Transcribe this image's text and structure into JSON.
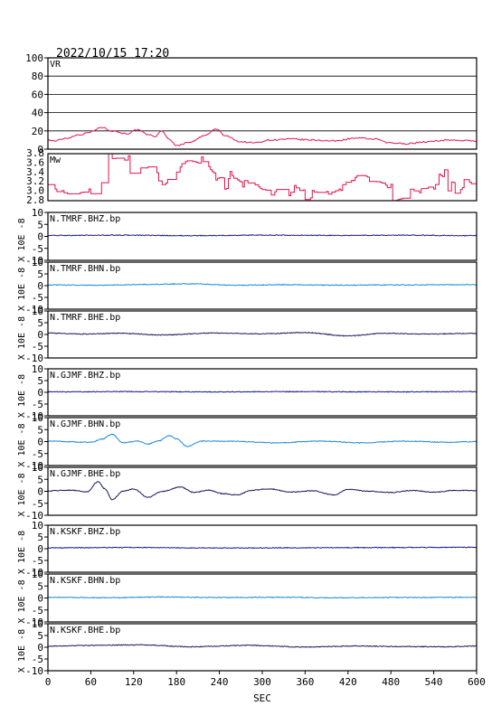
{
  "title": "2022/10/15  17:20",
  "chart_data": {
    "type": "line",
    "xlabel": "SEC",
    "xlim": [
      0,
      600
    ],
    "xticks": [
      0,
      60,
      120,
      180,
      240,
      300,
      360,
      420,
      480,
      540,
      600
    ],
    "panels": [
      {
        "label": "VR",
        "ylim": [
          0,
          100
        ],
        "yticks": [
          0,
          20,
          40,
          60,
          80,
          100
        ],
        "grid": true,
        "color": "#e0174a",
        "style": "vr",
        "anchors": [
          [
            0,
            10
          ],
          [
            10,
            9
          ],
          [
            25,
            12
          ],
          [
            45,
            16
          ],
          [
            60,
            19
          ],
          [
            75,
            24
          ],
          [
            90,
            20
          ],
          [
            110,
            17
          ],
          [
            125,
            21
          ],
          [
            140,
            16
          ],
          [
            150,
            14
          ],
          [
            160,
            20
          ],
          [
            168,
            12
          ],
          [
            180,
            4
          ],
          [
            200,
            8
          ],
          [
            220,
            15
          ],
          [
            235,
            22
          ],
          [
            250,
            14
          ],
          [
            270,
            8
          ],
          [
            290,
            7
          ],
          [
            310,
            10
          ],
          [
            340,
            11
          ],
          [
            370,
            10
          ],
          [
            400,
            9
          ],
          [
            430,
            12
          ],
          [
            460,
            11
          ],
          [
            475,
            7
          ],
          [
            500,
            6
          ],
          [
            530,
            8
          ],
          [
            560,
            10
          ],
          [
            600,
            9
          ]
        ]
      },
      {
        "label": "Mw",
        "ylim": [
          2.8,
          3.8
        ],
        "ytick_labels": [
          "2.8",
          "3.0",
          "3.2",
          "3.4",
          "3.6",
          "3.8"
        ],
        "grid": false,
        "color": "#e0174a",
        "style": "mw",
        "anchors": [
          [
            0,
            2.92
          ],
          [
            20,
            2.9
          ],
          [
            45,
            3.0
          ],
          [
            60,
            2.95
          ],
          [
            70,
            3.45
          ],
          [
            85,
            3.78
          ],
          [
            110,
            3.6
          ],
          [
            145,
            3.55
          ],
          [
            158,
            3.0
          ],
          [
            175,
            3.62
          ],
          [
            190,
            3.7
          ],
          [
            205,
            3.6
          ],
          [
            230,
            3.35
          ],
          [
            260,
            3.2
          ],
          [
            300,
            3.0
          ],
          [
            330,
            3.15
          ],
          [
            360,
            2.9
          ],
          [
            400,
            3.05
          ],
          [
            430,
            3.4
          ],
          [
            460,
            3.2
          ],
          [
            490,
            2.85
          ],
          [
            520,
            2.95
          ],
          [
            545,
            3.3
          ],
          [
            575,
            3.15
          ],
          [
            600,
            3.1
          ]
        ]
      },
      {
        "label": "N.TMRF.BHZ.bp",
        "ylim": [
          -10,
          10
        ],
        "yticks": [
          -10,
          -5,
          0,
          5,
          10
        ],
        "ylabel": "X 10E -8",
        "color": "#1a1a8c",
        "style": "wave",
        "anchors": [
          [
            0,
            0.4
          ],
          [
            100,
            0.5
          ],
          [
            200,
            0.3
          ],
          [
            300,
            0.5
          ],
          [
            420,
            0.4
          ],
          [
            500,
            0.5
          ],
          [
            600,
            0.3
          ]
        ]
      },
      {
        "label": "N.TMRF.BHN.bp",
        "ylim": [
          -10,
          10
        ],
        "yticks": [
          -10,
          -5,
          0,
          5,
          10
        ],
        "ylabel": "X 10E -8",
        "color": "#1e8ad6",
        "style": "wave",
        "anchors": [
          [
            0,
            0.3
          ],
          [
            70,
            0.2
          ],
          [
            140,
            0.5
          ],
          [
            200,
            0.8
          ],
          [
            260,
            0.2
          ],
          [
            330,
            0.4
          ],
          [
            400,
            0.2
          ],
          [
            480,
            0.3
          ],
          [
            600,
            0.4
          ]
        ]
      },
      {
        "label": "N.TMRF.BHE.bp",
        "ylim": [
          -10,
          10
        ],
        "yticks": [
          -10,
          -5,
          0,
          5,
          10
        ],
        "ylabel": "X 10E -8",
        "color": "#1a1a5a",
        "style": "wave",
        "anchors": [
          [
            0,
            0.6
          ],
          [
            50,
            0.2
          ],
          [
            100,
            0.5
          ],
          [
            160,
            -0.2
          ],
          [
            230,
            0.6
          ],
          [
            300,
            0.3
          ],
          [
            360,
            0.8
          ],
          [
            420,
            -0.6
          ],
          [
            470,
            0.5
          ],
          [
            530,
            0.2
          ],
          [
            600,
            0.5
          ]
        ]
      },
      {
        "label": "N.GJMF.BHZ.bp",
        "ylim": [
          -10,
          10
        ],
        "yticks": [
          -10,
          -5,
          0,
          5,
          10
        ],
        "ylabel": "X 10E -8",
        "color": "#1a1a8c",
        "style": "wave",
        "anchors": [
          [
            0,
            0.2
          ],
          [
            120,
            0.3
          ],
          [
            240,
            0.2
          ],
          [
            360,
            0.3
          ],
          [
            480,
            0.2
          ],
          [
            600,
            0.3
          ]
        ]
      },
      {
        "label": "N.GJMF.BHN.bp",
        "ylim": [
          -10,
          10
        ],
        "yticks": [
          -10,
          -5,
          0,
          5,
          10
        ],
        "ylabel": "X 10E -8",
        "color": "#1e8ad6",
        "style": "wave",
        "anchors": [
          [
            0,
            0.2
          ],
          [
            60,
            -0.3
          ],
          [
            75,
            1.0
          ],
          [
            90,
            3.0
          ],
          [
            105,
            -0.5
          ],
          [
            125,
            0.2
          ],
          [
            140,
            -1.0
          ],
          [
            155,
            0.3
          ],
          [
            170,
            2.5
          ],
          [
            180,
            1.2
          ],
          [
            195,
            -2.0
          ],
          [
            215,
            0.2
          ],
          [
            260,
            0.1
          ],
          [
            320,
            -0.5
          ],
          [
            380,
            0.2
          ],
          [
            440,
            -0.5
          ],
          [
            500,
            0.2
          ],
          [
            560,
            -0.3
          ],
          [
            600,
            0.0
          ]
        ]
      },
      {
        "label": "N.GJMF.BHE.bp",
        "ylim": [
          -10,
          10
        ],
        "yticks": [
          -10,
          -5,
          0,
          5,
          10
        ],
        "ylabel": "X 10E -8",
        "color": "#1a1a5a",
        "style": "wave",
        "anchors": [
          [
            0,
            0.2
          ],
          [
            30,
            0.5
          ],
          [
            55,
            -0.2
          ],
          [
            70,
            4.0
          ],
          [
            80,
            1.0
          ],
          [
            90,
            -3.5
          ],
          [
            105,
            0.0
          ],
          [
            120,
            1.0
          ],
          [
            140,
            -2.5
          ],
          [
            160,
            0.0
          ],
          [
            185,
            1.8
          ],
          [
            205,
            -0.5
          ],
          [
            225,
            0.5
          ],
          [
            245,
            -1.0
          ],
          [
            265,
            -1.5
          ],
          [
            285,
            0.4
          ],
          [
            310,
            1.0
          ],
          [
            340,
            -0.3
          ],
          [
            370,
            0.2
          ],
          [
            400,
            -1.5
          ],
          [
            420,
            0.8
          ],
          [
            450,
            0.0
          ],
          [
            480,
            -0.5
          ],
          [
            510,
            0.3
          ],
          [
            540,
            -0.4
          ],
          [
            570,
            0.4
          ],
          [
            600,
            0.3
          ]
        ]
      },
      {
        "label": "N.KSKF.BHZ.bp",
        "ylim": [
          -10,
          10
        ],
        "yticks": [
          -10,
          -5,
          0,
          5,
          10
        ],
        "ylabel": "X 10E -8",
        "color": "#1a1a8c",
        "style": "wave",
        "anchors": [
          [
            0,
            0.4
          ],
          [
            120,
            0.5
          ],
          [
            240,
            0.3
          ],
          [
            360,
            0.4
          ],
          [
            480,
            0.5
          ],
          [
            600,
            0.6
          ]
        ]
      },
      {
        "label": "N.KSKF.BHN.bp",
        "ylim": [
          -10,
          10
        ],
        "yticks": [
          -10,
          -5,
          0,
          5,
          10
        ],
        "ylabel": "X 10E -8",
        "color": "#1e8ad6",
        "style": "wave",
        "anchors": [
          [
            0,
            0.3
          ],
          [
            80,
            0.1
          ],
          [
            160,
            0.4
          ],
          [
            240,
            0.2
          ],
          [
            320,
            0.3
          ],
          [
            400,
            0.1
          ],
          [
            480,
            0.2
          ],
          [
            600,
            0.3
          ]
        ]
      },
      {
        "label": "N.KSKF.BHE.bp",
        "ylim": [
          -10,
          10
        ],
        "yticks": [
          -10,
          -5,
          0,
          5,
          10
        ],
        "ylabel": "X 10E -8",
        "color": "#1a1a5a",
        "style": "wave",
        "anchors": [
          [
            0,
            0.5
          ],
          [
            60,
            0.8
          ],
          [
            130,
            1.0
          ],
          [
            200,
            0.2
          ],
          [
            280,
            0.8
          ],
          [
            360,
            0.1
          ],
          [
            430,
            0.5
          ],
          [
            500,
            0.3
          ],
          [
            560,
            0.2
          ],
          [
            600,
            0.5
          ]
        ]
      }
    ]
  }
}
